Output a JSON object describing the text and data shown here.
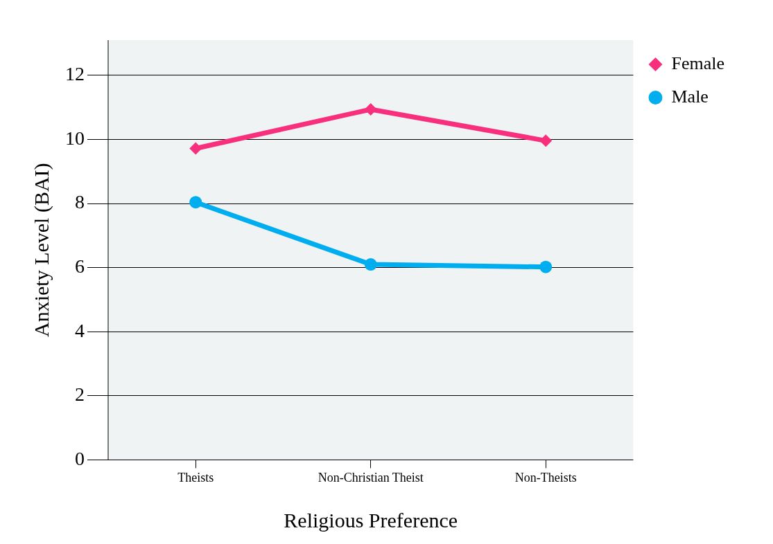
{
  "chart_data": {
    "type": "line",
    "xlabel": "Religious Preference",
    "ylabel": "Anxiety Level (BAI)",
    "categories": [
      "Theists",
      "Non-Christian Theist",
      "Non-Theists"
    ],
    "series": [
      {
        "name": "Female",
        "color": "#f72f7c",
        "values": [
          9.72,
          10.94,
          9.96
        ],
        "marker": "diamond"
      },
      {
        "name": "Male",
        "color": "#00aeef",
        "values": [
          8.04,
          6.1,
          6.02
        ],
        "marker": "circle"
      }
    ],
    "ylim": [
      0,
      13.1
    ],
    "yticks": [
      0,
      2,
      4,
      6,
      8,
      10,
      12
    ],
    "grid": "y",
    "legend": "top right",
    "line_style": "solid"
  }
}
